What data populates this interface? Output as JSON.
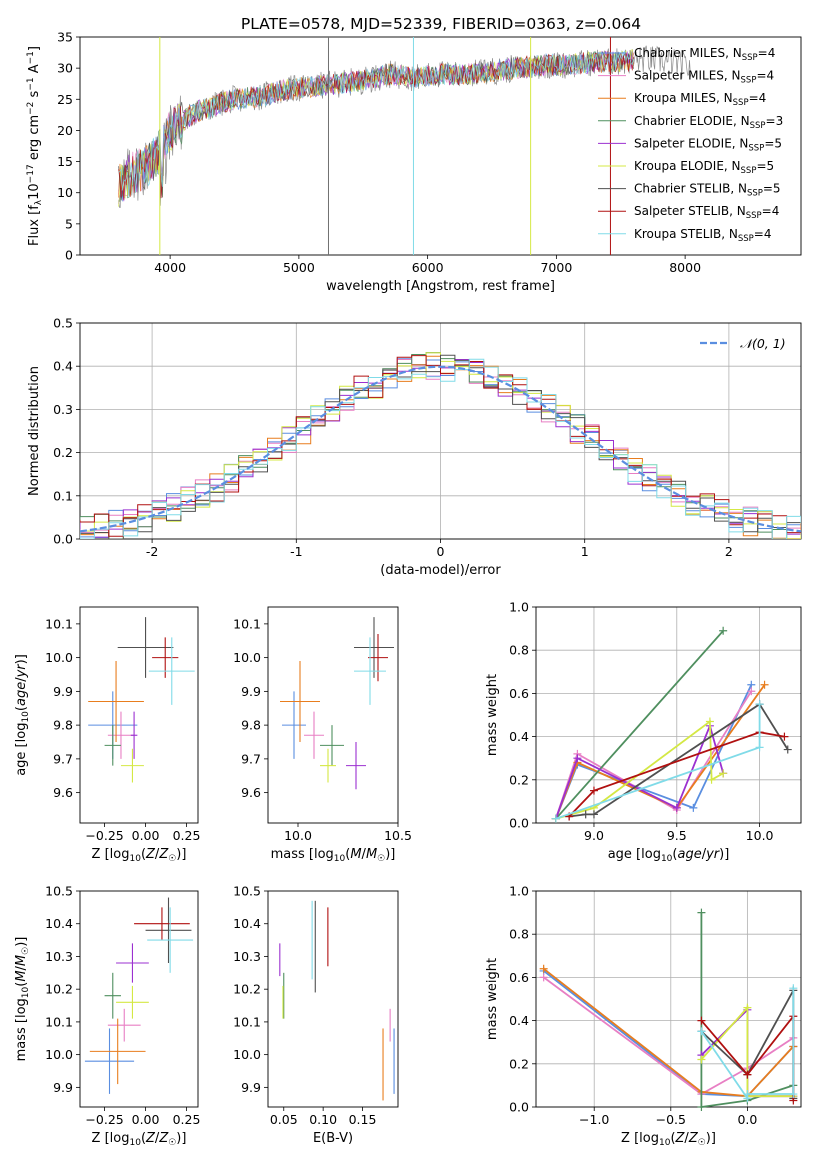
{
  "figure": {
    "title": "PLATE=0578, MJD=52339, FIBERID=0363, z=0.064"
  },
  "colors": {
    "Chabrier MILES": "#5a8ee0",
    "Salpeter MILES": "#e87fc4",
    "Kroupa MILES": "#e87d1e",
    "Chabrier ELODIE": "#4f8f5f",
    "Salpeter ELODIE": "#9b30d0",
    "Kroupa ELODIE": "#d4e844",
    "Chabrier STELIB": "#505050",
    "Salpeter STELIB": "#b01010",
    "Kroupa STELIB": "#80dbe8",
    "spectrum_gray": "#8a8a8a",
    "normal_curve": "#5a8ee0",
    "grid": "#b0b0b0"
  },
  "chart_data": [
    {
      "id": "spectrum",
      "type": "line",
      "xlabel": "wavelength [Angstrom, rest frame]",
      "ylabel": "Flux [f_λ10^-17 erg cm^-2 s^-1 A^-1]",
      "xlim": [
        3300,
        8900
      ],
      "ylim": [
        0,
        35
      ],
      "xticks": [
        4000,
        5000,
        6000,
        7000,
        8000
      ],
      "yticks": [
        0,
        5,
        10,
        15,
        20,
        25,
        30,
        35
      ],
      "grid": false,
      "legend_position": "right",
      "legend": [
        {
          "label": "Chabrier MILES, N_SSP=4",
          "main": "Chabrier MILES, N",
          "sub": "SSP",
          "tail": "=4",
          "key": "Chabrier MILES"
        },
        {
          "label": "Salpeter MILES, N_SSP=4",
          "main": "Salpeter MILES, N",
          "sub": "SSP",
          "tail": "=4",
          "key": "Salpeter MILES"
        },
        {
          "label": "Kroupa MILES, N_SSP=4",
          "main": "Kroupa MILES, N",
          "sub": "SSP",
          "tail": "=4",
          "key": "Kroupa MILES"
        },
        {
          "label": "Chabrier ELODIE, N_SSP=3",
          "main": "Chabrier ELODIE, N",
          "sub": "SSP",
          "tail": "=3",
          "key": "Chabrier ELODIE"
        },
        {
          "label": "Salpeter ELODIE, N_SSP=5",
          "main": "Salpeter ELODIE, N",
          "sub": "SSP",
          "tail": "=5",
          "key": "Salpeter ELODIE"
        },
        {
          "label": "Kroupa ELODIE, N_SSP=5",
          "main": "Kroupa ELODIE, N",
          "sub": "SSP",
          "tail": "=5",
          "key": "Kroupa ELODIE"
        },
        {
          "label": "Chabrier STELIB, N_SSP=5",
          "main": "Chabrier STELIB, N",
          "sub": "SSP",
          "tail": "=5",
          "key": "Chabrier STELIB"
        },
        {
          "label": "Salpeter STELIB, N_SSP=4",
          "main": "Salpeter STELIB, N",
          "sub": "SSP",
          "tail": "=4",
          "key": "Salpeter STELIB"
        },
        {
          "label": "Kroupa STELIB, N_SSP=4",
          "main": "Kroupa STELIB, N",
          "sub": "SSP",
          "tail": "=4",
          "key": "Kroupa STELIB"
        }
      ],
      "continuum": {
        "x": [
          3600,
          3700,
          3800,
          3900,
          4000,
          4100,
          4200,
          4300,
          4400,
          4500,
          4700,
          4900,
          5100,
          5300,
          5500,
          5700,
          5900,
          6100,
          6300,
          6500,
          6700,
          6900,
          7100,
          7300,
          7500,
          7700,
          7900,
          8050
        ],
        "y": [
          11,
          13,
          14,
          16,
          20,
          21.5,
          23,
          23.5,
          24.5,
          25,
          25.5,
          26.5,
          27,
          27.5,
          28,
          29,
          28.5,
          29,
          29,
          29.5,
          30,
          30.5,
          30.5,
          31,
          31,
          31.5,
          31,
          30
        ]
      }
    },
    {
      "id": "residuals",
      "type": "line",
      "xlabel": "(data-model)/error",
      "ylabel": "Normed distribution",
      "xlim": [
        -2.5,
        2.5
      ],
      "ylim": [
        0,
        0.5
      ],
      "xticks": [
        -2,
        -1,
        0,
        1,
        2
      ],
      "yticks": [
        0.0,
        0.1,
        0.2,
        0.3,
        0.4,
        0.5
      ],
      "grid": true,
      "legend_position": "top-right",
      "legend": [
        {
          "label": "𝒩(0, 1)"
        }
      ]
    },
    {
      "id": "age-Z",
      "type": "scatter",
      "xlabel": "Z [log10(Z/Z☉)]",
      "ylabel": "age [log10(age/yr)]",
      "xlim": [
        -0.4,
        0.32
      ],
      "ylim": [
        9.51,
        10.15
      ],
      "xticks": [
        -0.25,
        0.0,
        0.25
      ],
      "xtick_labels": [
        "−0.25",
        "0.00",
        "0.25"
      ],
      "yticks": [
        9.6,
        9.7,
        9.8,
        9.9,
        10.0,
        10.1
      ],
      "grid": false,
      "points": [
        {
          "key": "Chabrier MILES",
          "x": -0.2,
          "xerr": 0.15,
          "y": 9.8,
          "yerr": 0.1
        },
        {
          "key": "Salpeter MILES",
          "x": -0.15,
          "xerr": 0.08,
          "y": 9.77,
          "yerr": 0.07
        },
        {
          "key": "Kroupa MILES",
          "x": -0.18,
          "xerr": 0.17,
          "y": 9.87,
          "yerr": 0.12
        },
        {
          "key": "Chabrier ELODIE",
          "x": -0.2,
          "xerr": 0.05,
          "y": 9.74,
          "yerr": 0.06
        },
        {
          "key": "Salpeter ELODIE",
          "x": -0.07,
          "xerr": 0.02,
          "y": 9.77,
          "yerr": 0.07
        },
        {
          "key": "Kroupa ELODIE",
          "x": -0.08,
          "xerr": 0.07,
          "y": 9.68,
          "yerr": 0.05
        },
        {
          "key": "Chabrier STELIB",
          "x": 0.0,
          "xerr": 0.17,
          "y": 10.03,
          "yerr": 0.09
        },
        {
          "key": "Salpeter STELIB",
          "x": 0.12,
          "xerr": 0.08,
          "y": 10.0,
          "yerr": 0.06
        },
        {
          "key": "Kroupa STELIB",
          "x": 0.16,
          "xerr": 0.14,
          "y": 9.96,
          "yerr": 0.1
        }
      ]
    },
    {
      "id": "age-mass",
      "type": "scatter",
      "xlabel": "mass [log10(M/M☉)]",
      "ylabel": "",
      "xlim": [
        9.85,
        10.5
      ],
      "ylim": [
        9.51,
        10.15
      ],
      "xticks": [
        10.0,
        10.5
      ],
      "xtick_labels": [
        "10.0",
        "10.5"
      ],
      "yticks": [
        9.6,
        9.7,
        9.8,
        9.9,
        10.0,
        10.1
      ],
      "grid": false,
      "points": [
        {
          "key": "Chabrier MILES",
          "x": 9.98,
          "xerr": 0.06,
          "y": 9.8,
          "yerr": 0.1
        },
        {
          "key": "Salpeter MILES",
          "x": 10.08,
          "xerr": 0.05,
          "y": 9.77,
          "yerr": 0.07
        },
        {
          "key": "Kroupa MILES",
          "x": 10.01,
          "xerr": 0.1,
          "y": 9.87,
          "yerr": 0.12
        },
        {
          "key": "Chabrier ELODIE",
          "x": 10.17,
          "xerr": 0.06,
          "y": 9.74,
          "yerr": 0.06
        },
        {
          "key": "Salpeter ELODIE",
          "x": 10.29,
          "xerr": 0.05,
          "y": 9.68,
          "yerr": 0.07
        },
        {
          "key": "Kroupa ELODIE",
          "x": 10.15,
          "xerr": 0.04,
          "y": 9.68,
          "yerr": 0.05
        },
        {
          "key": "Chabrier STELIB",
          "x": 10.38,
          "xerr": 0.1,
          "y": 10.03,
          "yerr": 0.09
        },
        {
          "key": "Salpeter STELIB",
          "x": 10.4,
          "xerr": 0.05,
          "y": 10.0,
          "yerr": 0.07
        },
        {
          "key": "Kroupa STELIB",
          "x": 10.36,
          "xerr": 0.08,
          "y": 9.96,
          "yerr": 0.1
        }
      ]
    },
    {
      "id": "weight-age",
      "type": "line",
      "xlabel": "age [log10(age/yr)]",
      "ylabel": "mass weight",
      "xlim": [
        8.65,
        10.25
      ],
      "ylim": [
        0,
        1
      ],
      "xticks": [
        9.0,
        9.5,
        10.0
      ],
      "xtick_labels": [
        "9.0",
        "9.5",
        "10.0"
      ],
      "yticks": [
        0.0,
        0.2,
        0.4,
        0.6,
        0.8,
        1.0
      ],
      "grid": true,
      "series": [
        {
          "key": "Chabrier MILES",
          "x": [
            8.77,
            8.9,
            9.6,
            9.95
          ],
          "y": [
            0.02,
            0.27,
            0.07,
            0.64
          ]
        },
        {
          "key": "Salpeter MILES",
          "x": [
            8.77,
            8.9,
            9.5,
            9.95
          ],
          "y": [
            0.02,
            0.32,
            0.06,
            0.61
          ]
        },
        {
          "key": "Kroupa MILES",
          "x": [
            8.77,
            8.9,
            9.5,
            10.03
          ],
          "y": [
            0.02,
            0.28,
            0.07,
            0.64
          ]
        },
        {
          "key": "Chabrier ELODIE",
          "x": [
            8.77,
            9.78
          ],
          "y": [
            0.02,
            0.89
          ]
        },
        {
          "key": "Salpeter ELODIE",
          "x": [
            8.77,
            8.9,
            9.5,
            9.7,
            9.78
          ],
          "y": [
            0.02,
            0.3,
            0.07,
            0.45,
            0.23
          ]
        },
        {
          "key": "Kroupa ELODIE",
          "x": [
            8.77,
            9.0,
            9.7,
            9.71,
            9.78
          ],
          "y": [
            0.02,
            0.07,
            0.47,
            0.2,
            0.23
          ]
        },
        {
          "key": "Chabrier STELIB",
          "x": [
            8.85,
            8.95,
            9.0,
            10.0,
            10.17
          ],
          "y": [
            0.03,
            0.04,
            0.04,
            0.55,
            0.34
          ]
        },
        {
          "key": "Salpeter STELIB",
          "x": [
            8.85,
            9.0,
            10.0,
            10.15
          ],
          "y": [
            0.03,
            0.15,
            0.42,
            0.4
          ]
        },
        {
          "key": "Kroupa STELIB",
          "x": [
            8.77,
            10.0,
            10.0
          ],
          "y": [
            0.02,
            0.35,
            0.55
          ]
        }
      ]
    },
    {
      "id": "mass-Z",
      "type": "scatter",
      "xlabel": "Z [log10(Z/Z☉)]",
      "ylabel": "mass [log10(M/M☉)]",
      "xlim": [
        -0.4,
        0.32
      ],
      "ylim": [
        9.84,
        10.5
      ],
      "xticks": [
        -0.25,
        0.0,
        0.25
      ],
      "xtick_labels": [
        "−0.25",
        "0.00",
        "0.25"
      ],
      "yticks": [
        9.9,
        10.0,
        10.1,
        10.2,
        10.3,
        10.4,
        10.5
      ],
      "grid": false,
      "points": [
        {
          "key": "Chabrier MILES",
          "x": -0.22,
          "xerr": 0.15,
          "y": 9.98,
          "yerr": 0.1
        },
        {
          "key": "Salpeter MILES",
          "x": -0.13,
          "xerr": 0.1,
          "y": 10.09,
          "yerr": 0.05
        },
        {
          "key": "Kroupa MILES",
          "x": -0.17,
          "xerr": 0.17,
          "y": 10.01,
          "yerr": 0.1
        },
        {
          "key": "Chabrier ELODIE",
          "x": -0.2,
          "xerr": 0.05,
          "y": 10.18,
          "yerr": 0.07
        },
        {
          "key": "Salpeter ELODIE",
          "x": -0.08,
          "xerr": 0.1,
          "y": 10.28,
          "yerr": 0.06
        },
        {
          "key": "Kroupa ELODIE",
          "x": -0.08,
          "xerr": 0.1,
          "y": 10.16,
          "yerr": 0.05
        },
        {
          "key": "Chabrier STELIB",
          "x": 0.14,
          "xerr": 0.14,
          "y": 10.38,
          "yerr": 0.1
        },
        {
          "key": "Salpeter STELIB",
          "x": 0.1,
          "xerr": 0.17,
          "y": 10.4,
          "yerr": 0.05
        },
        {
          "key": "Kroupa STELIB",
          "x": 0.15,
          "xerr": 0.14,
          "y": 10.35,
          "yerr": 0.1
        }
      ]
    },
    {
      "id": "mass-EBV",
      "type": "scatter",
      "xlabel": "E(B-V)",
      "ylabel": "",
      "xlim": [
        0.03,
        0.195
      ],
      "ylim": [
        9.84,
        10.5
      ],
      "xticks": [
        0.05,
        0.1,
        0.15
      ],
      "xtick_labels": [
        "0.05",
        "0.10",
        "0.15"
      ],
      "yticks": [
        9.9,
        10.0,
        10.1,
        10.2,
        10.3,
        10.4,
        10.5
      ],
      "grid": false,
      "points": [
        {
          "key": "Chabrier MILES",
          "x": 0.19,
          "xerr": 0,
          "y": 9.98,
          "yerr": 0.1
        },
        {
          "key": "Salpeter MILES",
          "x": 0.185,
          "xerr": 0,
          "y": 10.09,
          "yerr": 0.05
        },
        {
          "key": "Kroupa MILES",
          "x": 0.176,
          "xerr": 0,
          "y": 9.97,
          "yerr": 0.11
        },
        {
          "key": "Chabrier ELODIE",
          "x": 0.05,
          "xerr": 0,
          "y": 10.18,
          "yerr": 0.07
        },
        {
          "key": "Salpeter ELODIE",
          "x": 0.045,
          "xerr": 0,
          "y": 10.29,
          "yerr": 0.05
        },
        {
          "key": "Kroupa ELODIE",
          "x": 0.049,
          "xerr": 0,
          "y": 10.16,
          "yerr": 0.05
        },
        {
          "key": "Chabrier STELIB",
          "x": 0.09,
          "xerr": 0,
          "y": 10.33,
          "yerr": 0.14
        },
        {
          "key": "Salpeter STELIB",
          "x": 0.106,
          "xerr": 0,
          "y": 10.36,
          "yerr": 0.09
        },
        {
          "key": "Kroupa STELIB",
          "x": 0.086,
          "xerr": 0,
          "y": 10.35,
          "yerr": 0.12
        }
      ]
    },
    {
      "id": "weight-Z",
      "type": "line",
      "xlabel": "Z [log10(Z/Z☉)]",
      "ylabel": "mass weight",
      "xlim": [
        -1.38,
        0.35
      ],
      "ylim": [
        0,
        1
      ],
      "xticks": [
        -1.0,
        -0.5,
        0.0
      ],
      "xtick_labels": [
        "−1.0",
        "−0.5",
        "0.0"
      ],
      "yticks": [
        0.0,
        0.2,
        0.4,
        0.6,
        0.8,
        1.0
      ],
      "grid": true,
      "series": [
        {
          "key": "Chabrier MILES",
          "x": [
            -1.33,
            -0.3,
            0.0,
            0.3
          ],
          "y": [
            0.63,
            0.06,
            0.05,
            0.28
          ]
        },
        {
          "key": "Salpeter MILES",
          "x": [
            -1.33,
            -0.3,
            0.0,
            0.3
          ],
          "y": [
            0.6,
            0.06,
            0.18,
            0.32
          ]
        },
        {
          "key": "Kroupa MILES",
          "x": [
            -1.33,
            -0.3,
            0.0,
            0.3
          ],
          "y": [
            0.64,
            0.07,
            0.05,
            0.28
          ]
        },
        {
          "key": "Chabrier ELODIE",
          "x": [
            -0.3,
            -0.3,
            0.0,
            0.3
          ],
          "y": [
            0.9,
            0.0,
            0.03,
            0.1
          ]
        },
        {
          "key": "Salpeter ELODIE",
          "x": [
            -0.3,
            0.0,
            0.0,
            0.3
          ],
          "y": [
            0.24,
            0.45,
            0.05,
            0.05
          ]
        },
        {
          "key": "Kroupa ELODIE",
          "x": [
            -0.3,
            0.0,
            0.0,
            0.3
          ],
          "y": [
            0.22,
            0.46,
            0.05,
            0.05
          ]
        },
        {
          "key": "Chabrier STELIB",
          "x": [
            -0.3,
            0.0,
            0.3,
            0.3
          ],
          "y": [
            0.35,
            0.15,
            0.54,
            0.04
          ]
        },
        {
          "key": "Salpeter STELIB",
          "x": [
            -0.3,
            0.0,
            0.3,
            0.3
          ],
          "y": [
            0.4,
            0.15,
            0.42,
            0.03
          ]
        },
        {
          "key": "Kroupa STELIB",
          "x": [
            -0.3,
            0.0,
            0.0,
            0.3,
            0.3
          ],
          "y": [
            0.35,
            0.04,
            0.06,
            0.06,
            0.55
          ]
        }
      ]
    }
  ]
}
